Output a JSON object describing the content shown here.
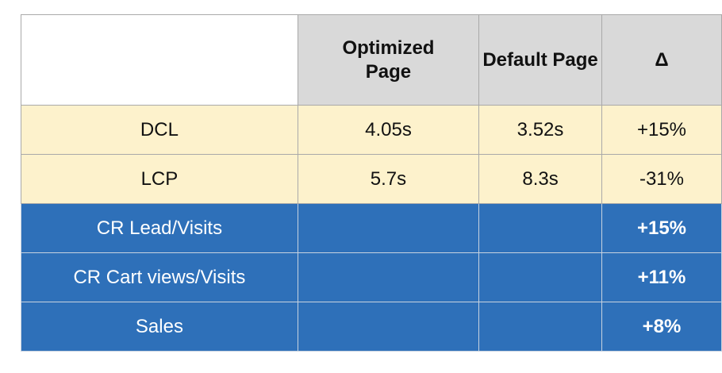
{
  "table": {
    "header": [
      "Optimized Page",
      "Default Page",
      "Δ"
    ],
    "rows": [
      {
        "label": "DCL",
        "optimized": "4.05s",
        "default": "3.52s",
        "delta": "+15%"
      },
      {
        "label": "LCP",
        "optimized": "5.7s",
        "default": "8.3s",
        "delta": "-31%"
      },
      {
        "label": "CR Lead/Visits",
        "delta": "+15%"
      },
      {
        "label": "CR Cart views/Visits",
        "delta": "+11%"
      },
      {
        "label": "Sales",
        "delta": "+8%"
      }
    ]
  }
}
